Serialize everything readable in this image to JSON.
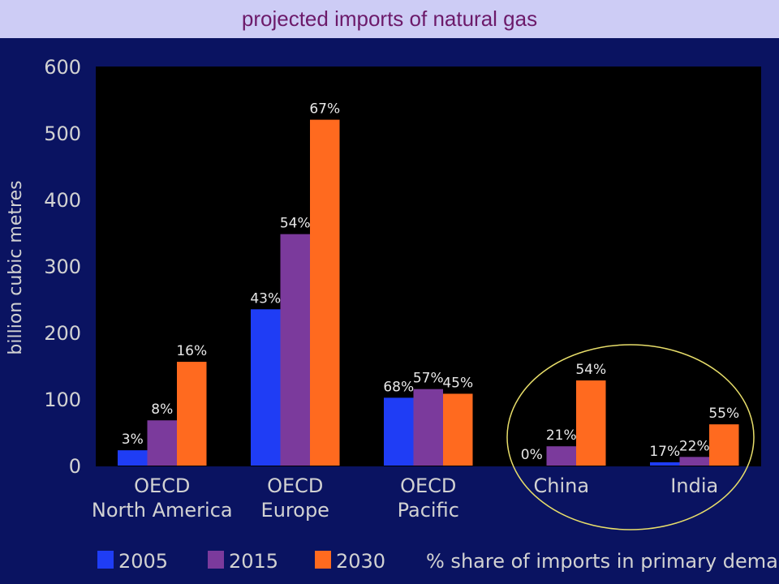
{
  "title": "projected imports of natural gas",
  "colors": {
    "background": "#0a1361",
    "plot_background": "#000000",
    "title_bar": "#cdccf5",
    "title_text": "#6c1a6a",
    "highlight_ellipse": "#e8de6a"
  },
  "chart_data": {
    "type": "bar",
    "ylabel": "billion cubic metres",
    "ylim": [
      0,
      600
    ],
    "yticks": [
      "0",
      "100",
      "200",
      "300",
      "400",
      "500",
      "600"
    ],
    "categories": [
      [
        "OECD",
        "North America"
      ],
      [
        "OECD",
        "Europe"
      ],
      [
        "OECD",
        "Pacific"
      ],
      [
        "China"
      ],
      [
        "India"
      ]
    ],
    "series": [
      {
        "name": "2005",
        "color": "#1f3df5",
        "values": [
          23,
          235,
          102,
          0,
          5
        ],
        "labels": [
          "3%",
          "43%",
          "68%",
          "0%",
          "17%"
        ]
      },
      {
        "name": "2015",
        "color": "#7b3a9c",
        "values": [
          68,
          348,
          115,
          29,
          13
        ],
        "labels": [
          "8%",
          "54%",
          "57%",
          "21%",
          "22%"
        ]
      },
      {
        "name": "2030",
        "color": "#ff6a1f",
        "values": [
          156,
          520,
          108,
          128,
          62
        ],
        "labels": [
          "16%",
          "67%",
          "45%",
          "54%",
          "55%"
        ]
      }
    ],
    "legend_note": "% share of imports in primary demand",
    "legend_position": "bottom",
    "grid": false
  }
}
